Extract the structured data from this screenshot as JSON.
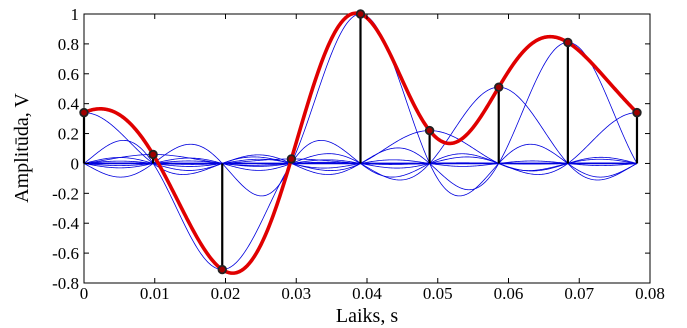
{
  "chart_data": {
    "type": "line",
    "xlabel": "Laiks, s",
    "ylabel": "Amplitūda, V",
    "xlim": [
      0,
      0.08
    ],
    "ylim": [
      -0.8,
      1
    ],
    "x_ticks": [
      "0",
      "0.01",
      "0.02",
      "0.03",
      "0.04",
      "0.05",
      "0.06",
      "0.07",
      "0.08"
    ],
    "y_ticks": [
      "-0.8",
      "-0.6",
      "-0.4",
      "-0.2",
      "0",
      "0.2",
      "0.4",
      "0.6",
      "0.8",
      "1"
    ],
    "grid": false,
    "sample_period": 0.00977,
    "samples": {
      "x": [
        0,
        0.00977,
        0.01954,
        0.02931,
        0.03908,
        0.04885,
        0.05862,
        0.06839,
        0.07816
      ],
      "y": [
        0.34,
        0.06,
        -0.71,
        0.03,
        1.0,
        0.22,
        0.51,
        0.81,
        0.34
      ]
    },
    "series": [
      {
        "values_ref": "samples",
        "color": "#e00000"
      },
      {
        "values_ref": "samples",
        "color": "#0000dd"
      }
    ],
    "stem_color": "#000000",
    "marker_color": "#a00000"
  }
}
